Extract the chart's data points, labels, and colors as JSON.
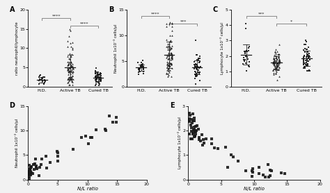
{
  "panel_labels": [
    "A",
    "B",
    "C",
    "D",
    "E"
  ],
  "groups": [
    "H.D.",
    "Active TB",
    "Cured TB"
  ],
  "A_ylabel": "ratio neutrophil/lymphocyte",
  "A_ylim": [
    0,
    20
  ],
  "A_yticks": [
    0,
    5,
    10,
    15,
    20
  ],
  "B_ylabel": "Neutrophil 1x10⁻³ cells/µl",
  "B_ylim": [
    0,
    15
  ],
  "B_yticks": [
    0,
    5,
    10,
    15
  ],
  "C_ylabel": "Lymphocyte 1x10⁻³ cells/µl",
  "C_ylim": [
    0,
    5
  ],
  "C_yticks": [
    0,
    1,
    2,
    3,
    4,
    5
  ],
  "D_xlabel": "N/L ratio",
  "D_ylabel": "Neutrophil 1x10⁻³ cells/µl",
  "D_xlim": [
    0,
    20
  ],
  "D_ylim": [
    0,
    15
  ],
  "D_xticks": [
    0,
    5,
    10,
    15,
    20
  ],
  "D_yticks": [
    0,
    5,
    10,
    15
  ],
  "E_xlabel": "N/L ratio",
  "E_ylabel": "Lymphocyte 1x10⁻³ cells/µl",
  "E_xlim": [
    0,
    20
  ],
  "E_ylim": [
    0,
    3
  ],
  "E_xticks": [
    0,
    5,
    10,
    15,
    20
  ],
  "E_yticks": [
    0,
    1,
    2,
    3
  ],
  "bg_color": "#f2f2f2",
  "dot_color": "#1a1a1a",
  "sig_color": "#888888",
  "marker_size": 1.8,
  "scatter_marker_size": 6
}
